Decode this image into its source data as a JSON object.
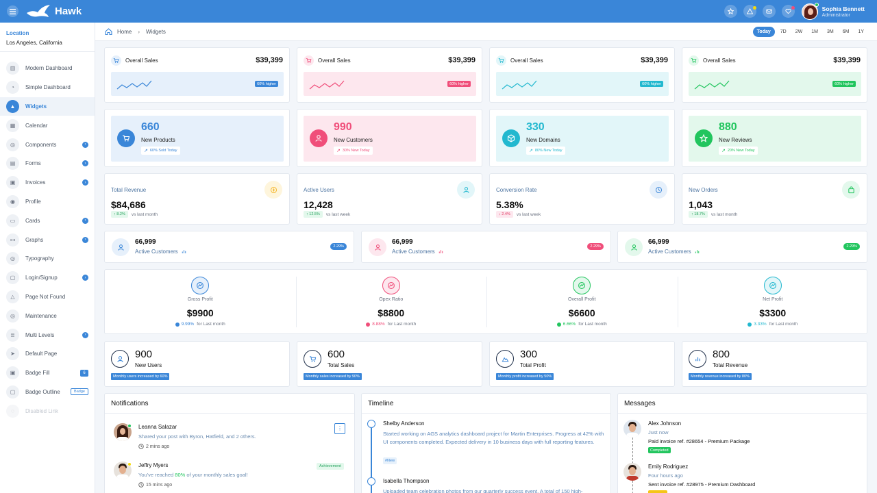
{
  "brand": {
    "name": "Hawk"
  },
  "user": {
    "name": "Sophia Bennett",
    "role": "Administrator"
  },
  "location": {
    "label": "Location",
    "value": "Los Angeles, California"
  },
  "sidebar": {
    "items": [
      {
        "label": "Modern Dashboard",
        "icon": "chart-icon"
      },
      {
        "label": "Simple Dashboard",
        "icon": "pie-icon"
      },
      {
        "label": "Widgets",
        "icon": "triangle-icon",
        "active": true
      },
      {
        "label": "Calendar",
        "icon": "calendar-icon"
      },
      {
        "label": "Components",
        "icon": "components-icon",
        "badge": "›"
      },
      {
        "label": "Forms",
        "icon": "forms-icon",
        "badge": "›"
      },
      {
        "label": "Invoices",
        "icon": "invoice-icon",
        "badge": "›"
      },
      {
        "label": "Profile",
        "icon": "profile-icon"
      },
      {
        "label": "Cards",
        "icon": "cards-icon",
        "badge": "›"
      },
      {
        "label": "Graphs",
        "icon": "graphs-icon",
        "badge": "›"
      },
      {
        "label": "Typography",
        "icon": "typography-icon"
      },
      {
        "label": "Login/Signup",
        "icon": "lock-icon",
        "badge": "›"
      },
      {
        "label": "Page Not Found",
        "icon": "warning-icon"
      },
      {
        "label": "Maintenance",
        "icon": "tools-icon"
      },
      {
        "label": "Multi Levels",
        "icon": "layers-icon",
        "badge": "›"
      },
      {
        "label": "Default Page",
        "icon": "send-icon"
      },
      {
        "label": "Badge Fill",
        "icon": "badge-icon",
        "fill_badge": "6"
      },
      {
        "label": "Badge Outline",
        "icon": "badge-outline-icon",
        "outline_badge": "Badge"
      },
      {
        "label": "Disabled Link",
        "icon": "disabled-icon",
        "disabled": true
      }
    ]
  },
  "breadcrumb": {
    "home": "Home",
    "current": "Widgets"
  },
  "ranges": [
    "Today",
    "7D",
    "2W",
    "1M",
    "3M",
    "6M",
    "1Y"
  ],
  "sales_cards": [
    {
      "title": "Overall Sales",
      "amount": "$39,399",
      "badge": "60% higher",
      "color": "#3a86d8",
      "bg": "#e6f0fb"
    },
    {
      "title": "Overall Sales",
      "amount": "$39,399",
      "badge": "60% higher",
      "color": "#f04e7a",
      "bg": "#fde7ee"
    },
    {
      "title": "Overall Sales",
      "amount": "$39,399",
      "badge": "60% higher",
      "color": "#22b8cf",
      "bg": "#e2f6f9"
    },
    {
      "title": "Overall Sales",
      "amount": "$39,399",
      "badge": "60% higher",
      "color": "#22c55e",
      "bg": "#e3f8ec"
    }
  ],
  "stat_cards": [
    {
      "value": "660",
      "label": "New Products",
      "pill": "60% Sold Today",
      "color": "#3a86d8",
      "bg": "#e6f0fb",
      "icon": "cart-icon"
    },
    {
      "value": "990",
      "label": "New Customers",
      "pill": "30% New Today",
      "color": "#f04e7a",
      "bg": "#fde7ee",
      "icon": "user-icon"
    },
    {
      "value": "330",
      "label": "New Domains",
      "pill": "80% New Today",
      "color": "#22b8cf",
      "bg": "#e2f6f9",
      "icon": "box-icon"
    },
    {
      "value": "880",
      "label": "New Reviews",
      "pill": "20% New Today",
      "color": "#22c55e",
      "bg": "#e3f8ec",
      "icon": "star-icon"
    }
  ],
  "kpis": [
    {
      "label": "Total Revenue",
      "value": "$84,686",
      "delta": "8.2%",
      "note": "vs last month",
      "dir": "up",
      "icon_color": "#f5b72b",
      "icon_bg": "#fef5dc"
    },
    {
      "label": "Active Users",
      "value": "12,428",
      "delta": "12.5%",
      "note": "vs last week",
      "dir": "up",
      "icon_color": "#22b8cf",
      "icon_bg": "#e2f6f9"
    },
    {
      "label": "Conversion Rate",
      "value": "5.38%",
      "delta": "2.4%",
      "note": "vs last week",
      "dir": "down",
      "icon_color": "#3a86d8",
      "icon_bg": "#e6f0fb"
    },
    {
      "label": "New Orders",
      "value": "1,043",
      "delta": "18.7%",
      "note": "vs last month",
      "dir": "up",
      "icon_color": "#22c55e",
      "icon_bg": "#e3f8ec"
    }
  ],
  "active_customers": [
    {
      "value": "66,999",
      "label": "Active Customers",
      "badge": "2.29%",
      "color": "#3a86d8",
      "bg": "#e6f0fb"
    },
    {
      "value": "66,999",
      "label": "Active Customers",
      "badge": "2.29%",
      "color": "#f04e7a",
      "bg": "#fde7ee"
    },
    {
      "value": "66,999",
      "label": "Active Customers",
      "badge": "2.29%",
      "color": "#22c55e",
      "bg": "#e3f8ec"
    }
  ],
  "profits": [
    {
      "label": "Gross Profit",
      "value": "$9900",
      "pct": "9.99%",
      "note": "for Last month",
      "color": "#3a86d8",
      "bg": "#e6f0fb"
    },
    {
      "label": "Opex Ratio",
      "value": "$8800",
      "pct": "8.88%",
      "note": "for Last month",
      "color": "#f04e7a",
      "bg": "#fde7ee"
    },
    {
      "label": "Overall Profit",
      "value": "$6600",
      "pct": "6.66%",
      "note": "for Last month",
      "color": "#22c55e",
      "bg": "#e3f8ec"
    },
    {
      "label": "Net Profit",
      "value": "$3300",
      "pct": "3.33%",
      "note": "for Last month",
      "color": "#22b8cf",
      "bg": "#e2f6f9"
    }
  ],
  "summary": [
    {
      "value": "900",
      "label": "New Users",
      "badge": "Monthly users increased by 60%"
    },
    {
      "value": "600",
      "label": "Total Sales",
      "badge": "Monthly sales increased by 90%"
    },
    {
      "value": "300",
      "label": "Total Profit",
      "badge": "Monthly profit increased by 50%"
    },
    {
      "value": "800",
      "label": "Total Revenue",
      "badge": "Monthly revenue increased by 80%"
    }
  ],
  "notifications": {
    "title": "Notifications",
    "items": [
      {
        "name": "Leanna Salazar",
        "text": "Shared your post with Byron, Hatfield, and 2 others.",
        "time": "2 mins ago"
      },
      {
        "name": "Jeffry Myers",
        "text_pre": "You've reached ",
        "text_hl": "80%",
        "text_post": " of your monthly sales goal!",
        "time": "15 mins ago",
        "tag": "Achievement"
      }
    ]
  },
  "timeline": {
    "title": "Timeline",
    "items": [
      {
        "name": "Shelby Anderson",
        "text": "Started working on AGS analytics dashboard project for Martin Enterprises. Progress at 42% with UI components completed. Expected delivery in 10 business days with full reporting features.",
        "tag": "#New"
      },
      {
        "name": "Isabella Thompson",
        "text": "Uploaded team celebration photos from our quarterly success event. A total of 150 high-"
      }
    ]
  },
  "messages": {
    "title": "Messages",
    "items": [
      {
        "name": "Alex Johnson",
        "time": "Just now",
        "text": "Paid invoice ref. #28654 - Premium Package",
        "status": "Completed"
      },
      {
        "name": "Emily Rodriguez",
        "time": "Four hours ago",
        "text": "Sent invoice ref. #28975 - Premium Dashboard"
      }
    ]
  }
}
